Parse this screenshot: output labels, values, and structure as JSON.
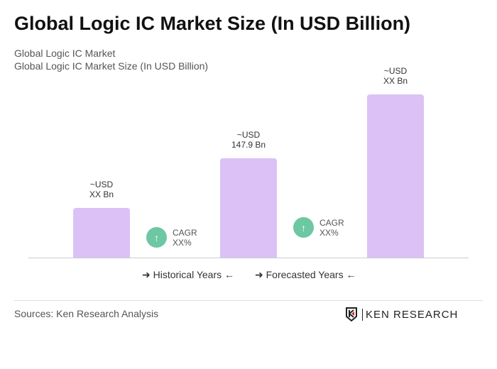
{
  "title": "Global Logic IC Market Size (In USD Billion)",
  "subtitle1": "Global Logic IC Market",
  "subtitle2": "Global Logic IC Market Size (In USD Billion)",
  "chart_data": {
    "type": "bar",
    "title": "Global Logic IC Market Size (In USD Billion)",
    "categories": [
      "",
      "",
      ""
    ],
    "values": [
      null,
      147.9,
      null
    ],
    "data_labels": [
      [
        "~USD",
        "XX Bn"
      ],
      [
        "~USD",
        "147.9 Bn"
      ],
      [
        "~USD",
        "XX Bn"
      ]
    ],
    "bar_color": "#dcc1f7",
    "cagr": [
      {
        "label": "CAGR",
        "value": "XX%"
      },
      {
        "label": "CAGR",
        "value": "XX%"
      }
    ],
    "cagr_color": "#6dc7a3",
    "legend": [
      "Historical Years",
      "Forecasted Years"
    ],
    "grid": false
  },
  "sources": "Sources: Ken Research Analysis",
  "logo": "KEN RESEARCH"
}
